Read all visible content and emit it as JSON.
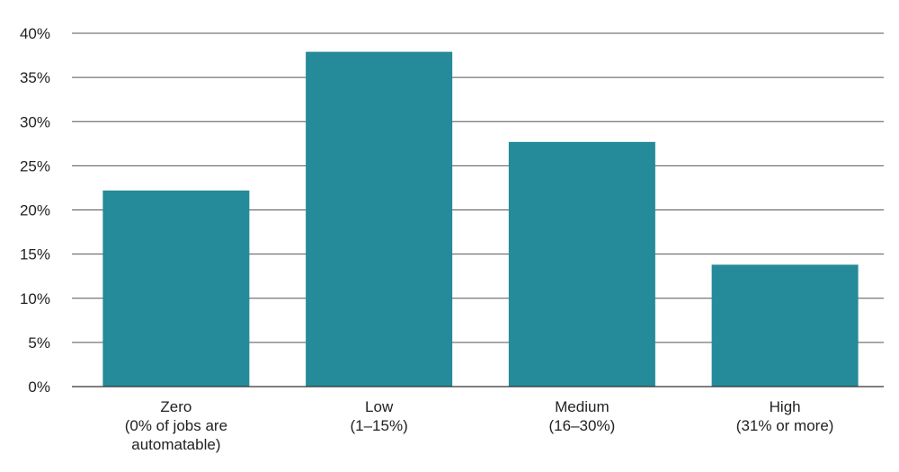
{
  "chart_data": {
    "type": "bar",
    "categories": [
      [
        "Zero",
        "(0% of jobs are",
        "automatable)"
      ],
      [
        "Low",
        "(1–15%)"
      ],
      [
        "Medium",
        "(16–30%)"
      ],
      [
        "High",
        "(31% or more)"
      ]
    ],
    "values": [
      22.2,
      37.9,
      27.7,
      13.8
    ],
    "y_ticks": [
      "0%",
      "5%",
      "10%",
      "15%",
      "20%",
      "25%",
      "30%",
      "35%",
      "40%"
    ],
    "ylim": [
      0,
      40
    ],
    "y_step": 5,
    "grid": true,
    "colors": {
      "bar": "#258a99"
    }
  }
}
